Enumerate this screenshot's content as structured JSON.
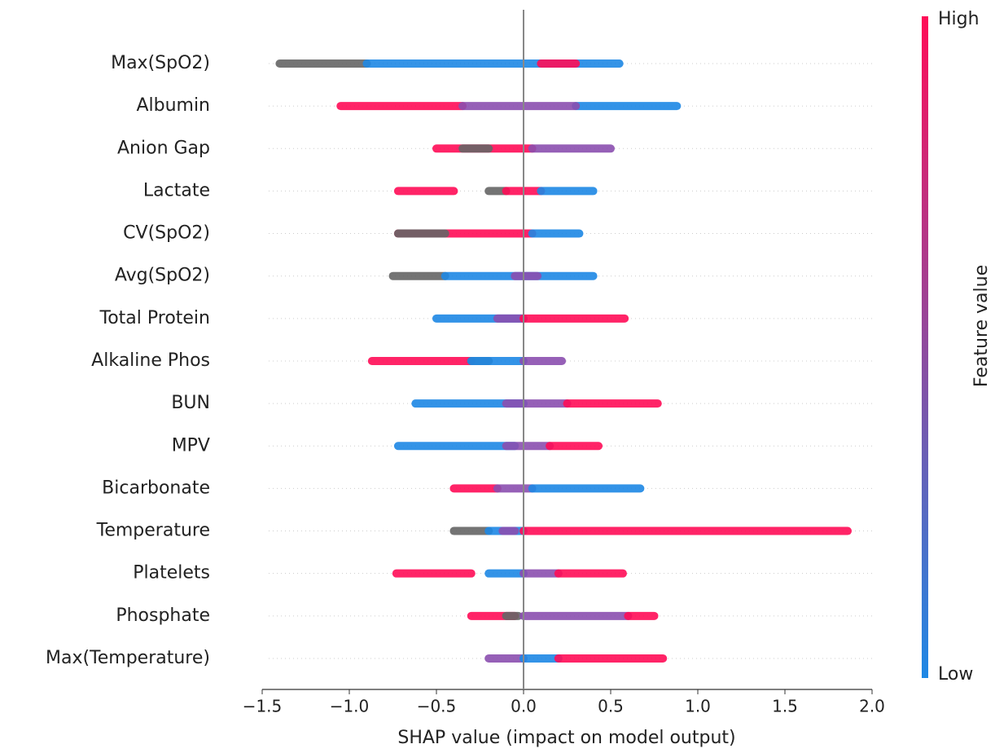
{
  "chart_data": {
    "type": "beeswarm",
    "x_label": "SHAP value (impact on model output)",
    "xlim": [
      -1.5,
      2.0
    ],
    "xticks": [
      {
        "value": -1.5,
        "label": "−1.5"
      },
      {
        "value": -1.0,
        "label": "−1.0"
      },
      {
        "value": -0.5,
        "label": "−0.5"
      },
      {
        "value": 0,
        "label": "0.0"
      },
      {
        "value": 0.5,
        "label": "0.5"
      },
      {
        "value": 1.0,
        "label": "1.0"
      },
      {
        "value": 1.5,
        "label": "1.5"
      },
      {
        "value": 2.0,
        "label": "2.0"
      }
    ],
    "colorbar": {
      "label": "Feature value",
      "high": "High",
      "low": "Low",
      "high_color": "#ff0d57",
      "low_color": "#1e88e5"
    },
    "features": [
      {
        "name": "Max(SpO2)",
        "segments": [
          {
            "from": -1.4,
            "to": -0.9,
            "color": "#666666"
          },
          {
            "from": -0.9,
            "to": 0.55,
            "color": "#1e88e5"
          },
          {
            "from": 0.1,
            "to": 0.3,
            "color": "#ff0d57"
          }
        ]
      },
      {
        "name": "Albumin",
        "segments": [
          {
            "from": -1.05,
            "to": -0.35,
            "color": "#ff0d57"
          },
          {
            "from": 0.3,
            "to": 0.88,
            "color": "#1e88e5"
          },
          {
            "from": -0.35,
            "to": 0.3,
            "color": "#8b4fb0"
          }
        ]
      },
      {
        "name": "Anion Gap",
        "segments": [
          {
            "from": -0.5,
            "to": 0.05,
            "color": "#ff0d57"
          },
          {
            "from": -0.35,
            "to": -0.2,
            "color": "#666666"
          },
          {
            "from": 0.05,
            "to": 0.5,
            "color": "#8b4fb0"
          }
        ]
      },
      {
        "name": "Lactate",
        "segments": [
          {
            "from": -0.72,
            "to": -0.4,
            "color": "#ff0d57"
          },
          {
            "from": -0.2,
            "to": -0.1,
            "color": "#666666"
          },
          {
            "from": -0.1,
            "to": 0.1,
            "color": "#ff0d57"
          },
          {
            "from": 0.1,
            "to": 0.4,
            "color": "#1e88e5"
          }
        ]
      },
      {
        "name": "CV(SpO2)",
        "segments": [
          {
            "from": -0.72,
            "to": 0.05,
            "color": "#ff0d57"
          },
          {
            "from": -0.72,
            "to": -0.45,
            "color": "#666666"
          },
          {
            "from": 0.05,
            "to": 0.32,
            "color": "#1e88e5"
          }
        ]
      },
      {
        "name": "Avg(SpO2)",
        "segments": [
          {
            "from": -0.75,
            "to": -0.45,
            "color": "#666666"
          },
          {
            "from": -0.45,
            "to": 0.4,
            "color": "#1e88e5"
          },
          {
            "from": -0.05,
            "to": 0.08,
            "color": "#8b4fb0"
          }
        ]
      },
      {
        "name": "Total Protein",
        "segments": [
          {
            "from": -0.5,
            "to": 0.0,
            "color": "#1e88e5"
          },
          {
            "from": -0.15,
            "to": 0.0,
            "color": "#8b4fb0"
          },
          {
            "from": 0.0,
            "to": 0.58,
            "color": "#ff0d57"
          }
        ]
      },
      {
        "name": "Alkaline Phos",
        "segments": [
          {
            "from": -0.87,
            "to": -0.3,
            "color": "#ff0d57"
          },
          {
            "from": -0.3,
            "to": -0.2,
            "color": "#666666"
          },
          {
            "from": -0.3,
            "to": 0.0,
            "color": "#1e88e5"
          },
          {
            "from": 0.0,
            "to": 0.22,
            "color": "#8b4fb0"
          }
        ]
      },
      {
        "name": "BUN",
        "segments": [
          {
            "from": -0.62,
            "to": 0.0,
            "color": "#1e88e5"
          },
          {
            "from": -0.1,
            "to": 0.25,
            "color": "#8b4fb0"
          },
          {
            "from": 0.25,
            "to": 0.77,
            "color": "#ff0d57"
          }
        ]
      },
      {
        "name": "MPV",
        "segments": [
          {
            "from": -0.72,
            "to": -0.05,
            "color": "#1e88e5"
          },
          {
            "from": -0.1,
            "to": 0.15,
            "color": "#8b4fb0"
          },
          {
            "from": 0.15,
            "to": 0.43,
            "color": "#ff0d57"
          }
        ]
      },
      {
        "name": "Bicarbonate",
        "segments": [
          {
            "from": -0.4,
            "to": -0.15,
            "color": "#ff0d57"
          },
          {
            "from": -0.15,
            "to": 0.05,
            "color": "#8b4fb0"
          },
          {
            "from": 0.05,
            "to": 0.67,
            "color": "#1e88e5"
          }
        ]
      },
      {
        "name": "Temperature",
        "segments": [
          {
            "from": -0.4,
            "to": -0.2,
            "color": "#666666"
          },
          {
            "from": -0.2,
            "to": 0.0,
            "color": "#1e88e5"
          },
          {
            "from": -0.12,
            "to": -0.05,
            "color": "#8b4fb0"
          },
          {
            "from": 0.0,
            "to": 1.86,
            "color": "#ff0d57"
          }
        ]
      },
      {
        "name": "Platelets",
        "segments": [
          {
            "from": -0.73,
            "to": -0.3,
            "color": "#ff0d57"
          },
          {
            "from": -0.2,
            "to": 0.0,
            "color": "#1e88e5"
          },
          {
            "from": 0.0,
            "to": 0.2,
            "color": "#8b4fb0"
          },
          {
            "from": 0.2,
            "to": 0.57,
            "color": "#ff0d57"
          }
        ]
      },
      {
        "name": "Phosphate",
        "segments": [
          {
            "from": -0.3,
            "to": -0.05,
            "color": "#ff0d57"
          },
          {
            "from": -0.1,
            "to": -0.03,
            "color": "#666666"
          },
          {
            "from": 0.0,
            "to": 0.6,
            "color": "#8b4fb0"
          },
          {
            "from": 0.6,
            "to": 0.75,
            "color": "#ff0d57"
          }
        ]
      },
      {
        "name": "Max(Temperature)",
        "segments": [
          {
            "from": -0.2,
            "to": 0.0,
            "color": "#8b4fb0"
          },
          {
            "from": 0.0,
            "to": 0.2,
            "color": "#1e88e5"
          },
          {
            "from": 0.2,
            "to": 0.8,
            "color": "#ff0d57"
          }
        ]
      }
    ]
  }
}
